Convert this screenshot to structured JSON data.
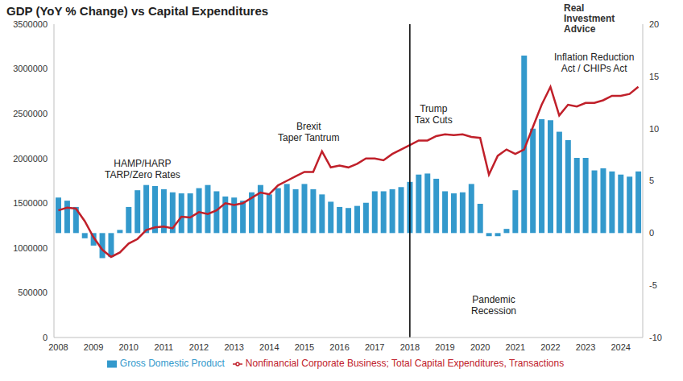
{
  "chart_data": {
    "type": "bar_line",
    "title": "GDP (YoY % Change) vs Capital Expenditures",
    "logo": [
      "Real",
      "Investment",
      "Advice"
    ],
    "categories": [
      "2008",
      null,
      null,
      null,
      "2009",
      null,
      null,
      null,
      "2010",
      null,
      null,
      null,
      "2011",
      null,
      null,
      null,
      "2012",
      null,
      null,
      null,
      "2013",
      null,
      null,
      null,
      "2014",
      null,
      null,
      null,
      "2015",
      null,
      null,
      null,
      "2016",
      null,
      null,
      null,
      "2017",
      null,
      null,
      null,
      "2018",
      null,
      null,
      null,
      "2019",
      null,
      null,
      null,
      "2020",
      null,
      null,
      null,
      "2021",
      null,
      null,
      null,
      "2022",
      null,
      null,
      null,
      "2023",
      null,
      null,
      null,
      "2024",
      null,
      null
    ],
    "series": [
      {
        "name": "Gross Domestic Product",
        "type": "bar",
        "axis": "y2",
        "color": "#3399cc",
        "values": [
          3.4,
          3.1,
          2.5,
          -0.5,
          -1.2,
          -2.4,
          -2.3,
          0.3,
          2.5,
          4.1,
          4.6,
          4.5,
          4.2,
          3.9,
          3.8,
          3.8,
          4.3,
          4.6,
          4.0,
          3.5,
          3.4,
          3.1,
          3.9,
          4.6,
          3.7,
          4.3,
          4.7,
          4.2,
          4.7,
          4.2,
          3.7,
          3.0,
          2.5,
          2.4,
          2.6,
          2.9,
          4.0,
          4.0,
          4.2,
          4.4,
          4.9,
          5.6,
          5.7,
          5.2,
          4.0,
          3.8,
          3.9,
          4.7,
          2.8,
          -0.3,
          -0.3,
          0.4,
          4.1,
          17.0,
          10.0,
          10.9,
          10.8,
          9.7,
          8.9,
          7.2,
          7.2,
          6.0,
          6.2,
          5.9,
          5.6,
          5.4,
          5.9
        ]
      },
      {
        "name": "Nonfinancial Corporate Business; Total Capital Expenditures, Transactions",
        "type": "line",
        "axis": "y",
        "color": "#c0202a",
        "values": [
          1420000,
          1450000,
          1440000,
          1300000,
          1120000,
          980000,
          900000,
          950000,
          1050000,
          1100000,
          1200000,
          1230000,
          1240000,
          1220000,
          1350000,
          1340000,
          1400000,
          1380000,
          1420000,
          1500000,
          1480000,
          1500000,
          1560000,
          1620000,
          1600000,
          1700000,
          1750000,
          1800000,
          1850000,
          1850000,
          2080000,
          1900000,
          1920000,
          1900000,
          1940000,
          2000000,
          2000000,
          1980000,
          2050000,
          2100000,
          2150000,
          2200000,
          2200000,
          2250000,
          2270000,
          2260000,
          2270000,
          2240000,
          2230000,
          1820000,
          2030000,
          2100000,
          2050000,
          2100000,
          2350000,
          2600000,
          2800000,
          2480000,
          2600000,
          2580000,
          2620000,
          2620000,
          2650000,
          2700000,
          2700000,
          2720000,
          2800000
        ]
      }
    ],
    "ylim": [
      0,
      3500000
    ],
    "yticks": [
      0,
      500000,
      1000000,
      1500000,
      2000000,
      2500000,
      3000000,
      3500000
    ],
    "y2lim": [
      -10,
      20
    ],
    "y2ticks": [
      -10,
      -5,
      0,
      5,
      10,
      15,
      20
    ],
    "grid": false,
    "legend": "bottom",
    "reference_lines": [
      {
        "x": "2018",
        "color": "#000000"
      }
    ],
    "annotations": [
      {
        "lines": [
          "HAMP/HARP",
          "TARP/Zero Rates"
        ]
      },
      {
        "lines": [
          "Brexit",
          "Taper Tantrum"
        ]
      },
      {
        "lines": [
          "Trump",
          "Tax Cuts"
        ]
      },
      {
        "lines": [
          "Pandemic",
          "Recession"
        ]
      },
      {
        "lines": [
          "Inflation Reduction",
          "Act / CHIPs Act"
        ]
      }
    ]
  }
}
